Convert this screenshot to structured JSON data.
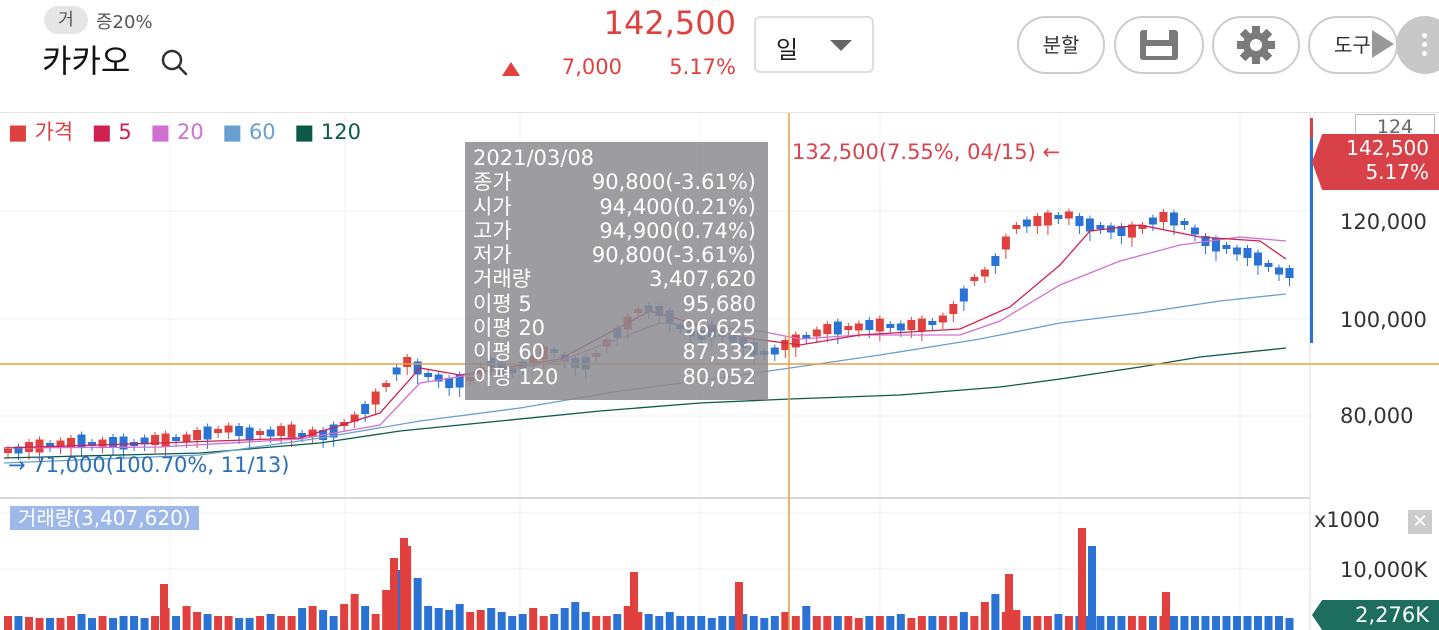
{
  "header": {
    "badge": "거",
    "margin": "증20%",
    "stock_name": "카카오",
    "price": "142,500",
    "change": "7,000",
    "change_pct": "5.17%",
    "period": "일",
    "split_label": "분할",
    "tools_label": "도구"
  },
  "legend": {
    "price": "가격",
    "ma5": "5",
    "ma20": "20",
    "ma60": "60",
    "ma120": "120"
  },
  "tooltip": {
    "date": "2021/03/08",
    "rows": [
      {
        "label": "종가",
        "value": "90,800(-3.61%)"
      },
      {
        "label": "시가",
        "value": "94,400(0.21%)"
      },
      {
        "label": "고가",
        "value": "94,900(0.74%)"
      },
      {
        "label": "저가",
        "value": "90,800(-3.61%)"
      },
      {
        "label": "거래량",
        "value": "3,407,620"
      },
      {
        "label": "이평 5",
        "value": "95,680"
      },
      {
        "label": "이평 20",
        "value": "96,625"
      },
      {
        "label": "이평 60",
        "value": "87,332"
      },
      {
        "label": "이평 120",
        "value": "80,052"
      }
    ]
  },
  "annotations": {
    "high": "132,500(7.55%, 04/15) ←",
    "low": "→ 71,000(100.70%, 11/13)"
  },
  "axis": {
    "count": "124",
    "price_tag_value": "142,500",
    "price_tag_pct": "5.17%",
    "ticks": [
      "120,000",
      "100,000",
      "80,000"
    ]
  },
  "volume": {
    "label": "거래량(3,407,620)",
    "scale": "x1000",
    "tick": "10,000K",
    "current": "2,276K"
  },
  "colors": {
    "up": "#e0413f",
    "down": "#2a72d4",
    "ma5": "#d02050",
    "ma20": "#d070d0",
    "ma60": "#6aa0d0",
    "ma120": "#0e5a4a"
  }
}
